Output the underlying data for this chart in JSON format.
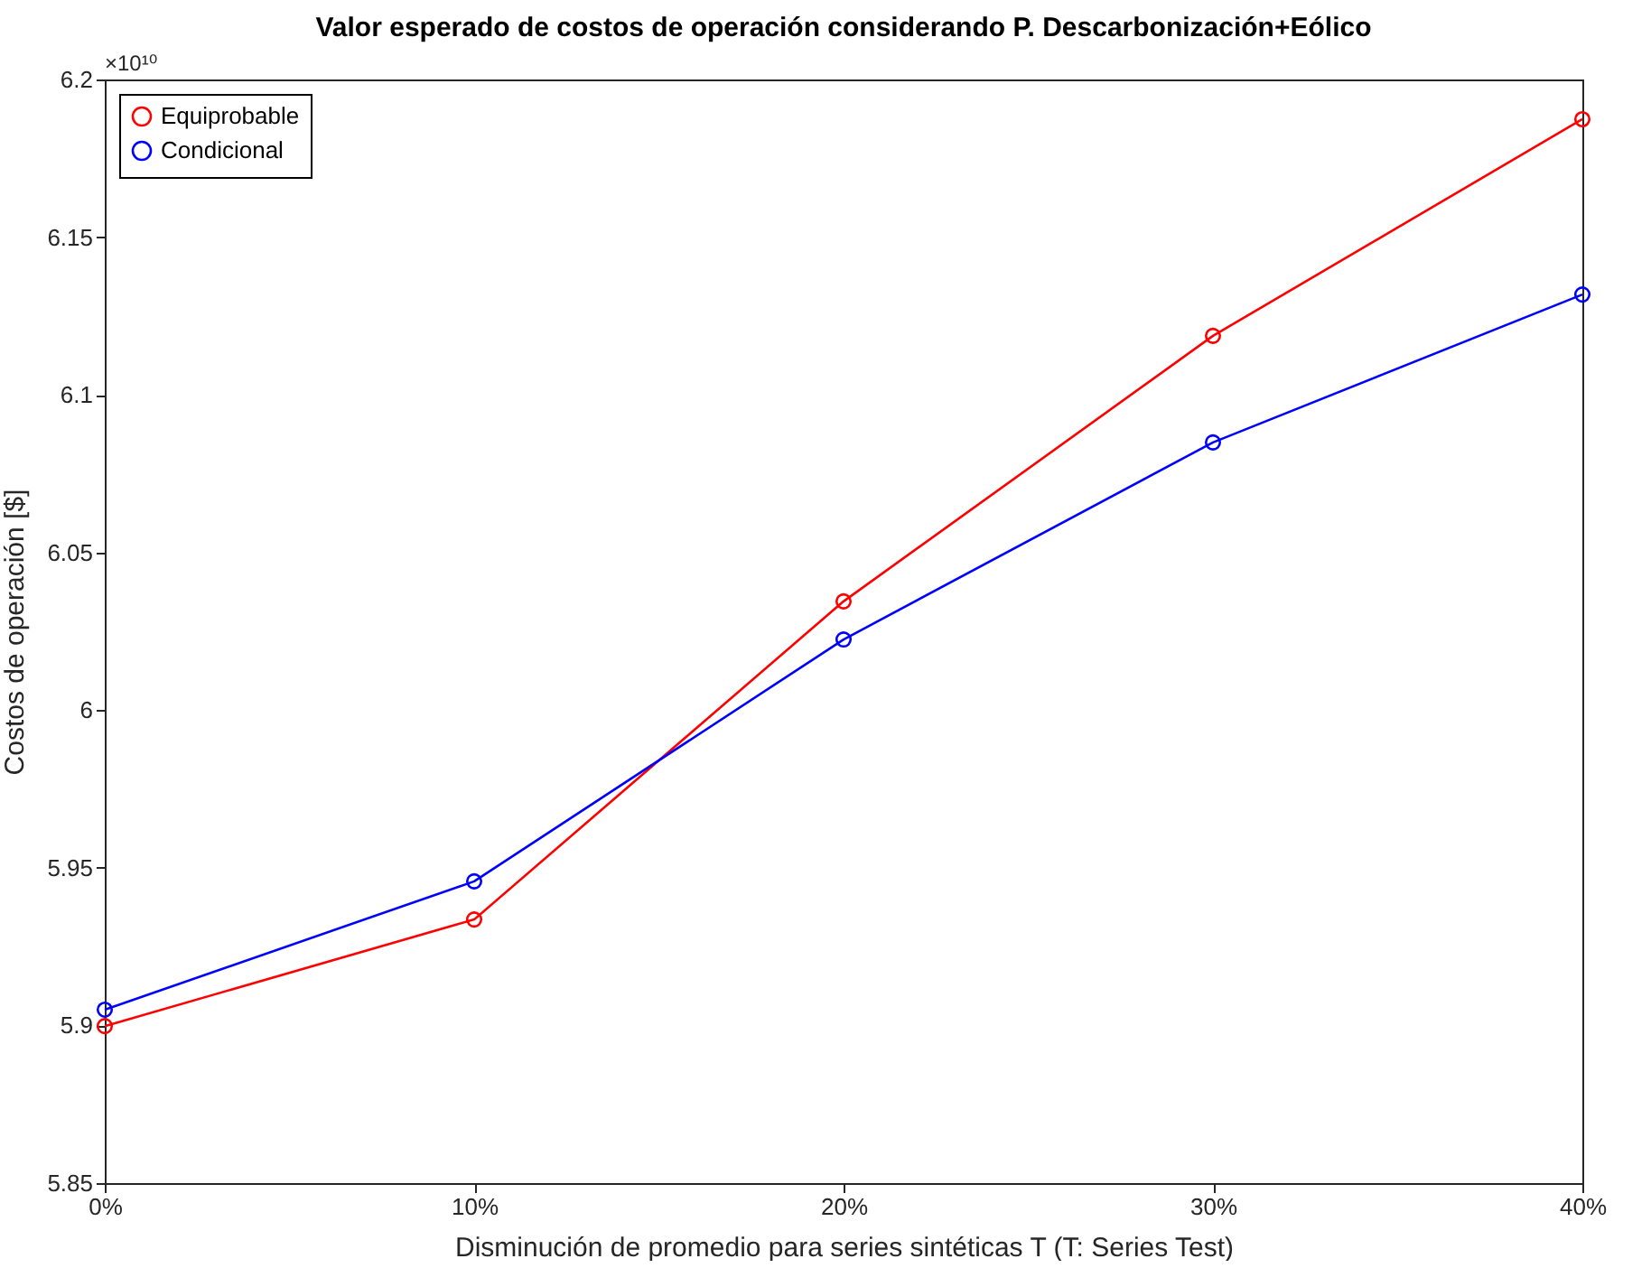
{
  "chart_data": {
    "type": "line",
    "title": "Valor esperado de costos de operación considerando P. Descarbonización+Eólico",
    "xlabel": "Disminución de promedio para series sintéticas T (T: Series Test)",
    "ylabel": "Costos de operación [$]",
    "annotations": [
      "×10¹⁰"
    ],
    "categories": [
      "0%",
      "10%",
      "20%",
      "30%",
      "40%"
    ],
    "series": [
      {
        "name": "Equiprobable",
        "color": "#ff0000",
        "values": [
          5.8998,
          5.9336,
          6.0345,
          6.1187,
          6.1874
        ]
      },
      {
        "name": "Condicional",
        "color": "#0000ff",
        "values": [
          5.905,
          5.9457,
          6.0224,
          6.0849,
          6.1318
        ]
      }
    ],
    "ylim": [
      5.85,
      6.2
    ],
    "yticks": [
      5.85,
      5.9,
      5.95,
      6,
      6.05,
      6.1,
      6.15,
      6.2
    ],
    "grid": false,
    "legend": "top left",
    "marker": "circle",
    "line_style": "solid"
  }
}
